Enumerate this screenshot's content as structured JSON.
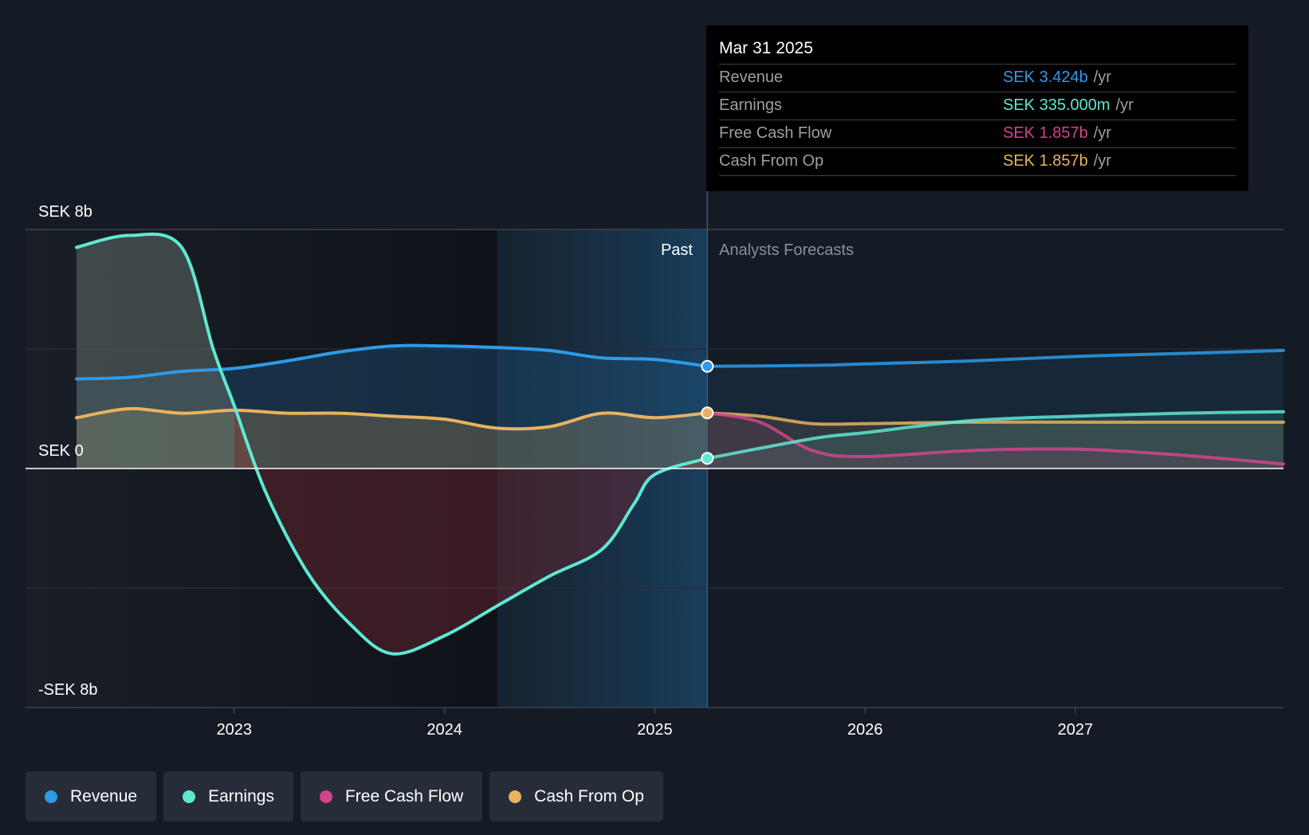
{
  "tooltip": {
    "date": "Mar 31 2025",
    "rows": [
      {
        "label": "Revenue",
        "value": "SEK 3.424b",
        "unit": "/yr",
        "color": "#2d9be8"
      },
      {
        "label": "Earnings",
        "value": "SEK 335.000m",
        "unit": "/yr",
        "color": "#5ee8d3"
      },
      {
        "label": "Free Cash Flow",
        "value": "SEK 1.857b",
        "unit": "/yr",
        "color": "#d2448c"
      },
      {
        "label": "Cash From Op",
        "value": "SEK 1.857b",
        "unit": "/yr",
        "color": "#e9b25f"
      }
    ]
  },
  "legend": [
    {
      "label": "Revenue",
      "color": "#2d9be8"
    },
    {
      "label": "Earnings",
      "color": "#5ee8d3"
    },
    {
      "label": "Free Cash Flow",
      "color": "#d2448c"
    },
    {
      "label": "Cash From Op",
      "color": "#e9b25f"
    }
  ],
  "chart_data": {
    "type": "line",
    "y_unit": "SEK billions",
    "ylim": [
      -8,
      8
    ],
    "y_tick_labels": {
      "top": "SEK 8b",
      "zero": "SEK 0",
      "bottom": "-SEK 8b"
    },
    "x_ticks": [
      2023,
      2024,
      2025,
      2026,
      2027
    ],
    "xlim": [
      2022.25,
      2027.99
    ],
    "past_label": "Past",
    "forecast_label": "Analysts Forecasts",
    "divider_x": 2025.25,
    "past_shade_start": 2024.25,
    "series": [
      {
        "name": "Revenue",
        "color": "#2d9be8",
        "past": [
          [
            2022.25,
            3.0
          ],
          [
            2022.5,
            3.05
          ],
          [
            2022.75,
            3.25
          ],
          [
            2023.0,
            3.35
          ],
          [
            2023.25,
            3.6
          ],
          [
            2023.5,
            3.9
          ],
          [
            2023.75,
            4.1
          ],
          [
            2024.0,
            4.1
          ],
          [
            2024.25,
            4.05
          ],
          [
            2024.5,
            3.95
          ],
          [
            2024.75,
            3.7
          ],
          [
            2025.0,
            3.65
          ],
          [
            2025.25,
            3.42
          ]
        ],
        "forecast": [
          [
            2025.25,
            3.42
          ],
          [
            2025.75,
            3.45
          ],
          [
            2026.0,
            3.5
          ],
          [
            2026.5,
            3.6
          ],
          [
            2027.0,
            3.75
          ],
          [
            2027.5,
            3.85
          ],
          [
            2027.99,
            3.95
          ]
        ]
      },
      {
        "name": "Earnings",
        "color": "#5ee8d3",
        "past": [
          [
            2022.25,
            7.4
          ],
          [
            2022.5,
            7.8
          ],
          [
            2022.75,
            7.4
          ],
          [
            2022.9,
            4.0
          ],
          [
            2023.0,
            2.1
          ],
          [
            2023.15,
            -0.8
          ],
          [
            2023.35,
            -3.5
          ],
          [
            2023.55,
            -5.2
          ],
          [
            2023.75,
            -6.2
          ],
          [
            2024.0,
            -5.6
          ],
          [
            2024.25,
            -4.6
          ],
          [
            2024.5,
            -3.6
          ],
          [
            2024.75,
            -2.7
          ],
          [
            2024.9,
            -1.2
          ],
          [
            2025.0,
            -0.2
          ],
          [
            2025.25,
            0.34
          ]
        ],
        "forecast": [
          [
            2025.25,
            0.34
          ],
          [
            2025.75,
            1.0
          ],
          [
            2026.0,
            1.2
          ],
          [
            2026.5,
            1.6
          ],
          [
            2027.0,
            1.75
          ],
          [
            2027.5,
            1.85
          ],
          [
            2027.99,
            1.9
          ]
        ]
      },
      {
        "name": "Free Cash Flow",
        "color": "#d2448c",
        "past": [],
        "forecast": [
          [
            2025.25,
            1.86
          ],
          [
            2025.5,
            1.55
          ],
          [
            2025.75,
            0.6
          ],
          [
            2026.0,
            0.4
          ],
          [
            2026.5,
            0.6
          ],
          [
            2027.0,
            0.65
          ],
          [
            2027.5,
            0.45
          ],
          [
            2027.99,
            0.15
          ]
        ]
      },
      {
        "name": "Cash From Op",
        "color": "#e9b25f",
        "past": [
          [
            2022.25,
            1.7
          ],
          [
            2022.5,
            2.0
          ],
          [
            2022.75,
            1.85
          ],
          [
            2023.0,
            1.95
          ],
          [
            2023.25,
            1.85
          ],
          [
            2023.5,
            1.85
          ],
          [
            2023.75,
            1.75
          ],
          [
            2024.0,
            1.65
          ],
          [
            2024.25,
            1.35
          ],
          [
            2024.5,
            1.4
          ],
          [
            2024.75,
            1.85
          ],
          [
            2025.0,
            1.7
          ],
          [
            2025.25,
            1.86
          ]
        ],
        "forecast": [
          [
            2025.25,
            1.86
          ],
          [
            2025.5,
            1.75
          ],
          [
            2025.75,
            1.5
          ],
          [
            2026.0,
            1.5
          ],
          [
            2026.5,
            1.55
          ],
          [
            2027.0,
            1.55
          ],
          [
            2027.5,
            1.55
          ],
          [
            2027.99,
            1.55
          ]
        ]
      }
    ]
  }
}
